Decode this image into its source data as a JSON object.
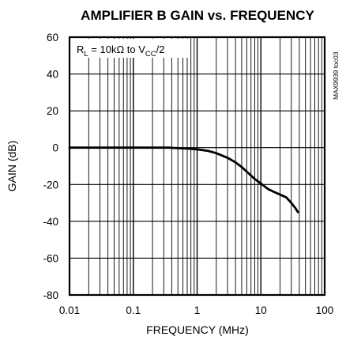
{
  "chart_data": {
    "type": "line",
    "title": "AMPLIFIER B GAIN vs. FREQUENCY",
    "xlabel": "FREQUENCY (MHz)",
    "ylabel": "GAIN (dB)",
    "xscale": "log",
    "xlim": [
      0.01,
      100
    ],
    "ylim": [
      -80,
      60
    ],
    "xticks": [
      "0.01",
      "0.1",
      "1",
      "10",
      "100"
    ],
    "yticks": [
      "60",
      "40",
      "20",
      "0",
      "-20",
      "-40",
      "-60",
      "-80"
    ],
    "grid": true,
    "annotation": {
      "R": "R",
      "R_sub": "L",
      "mid": " = 10kΩ to V",
      "V_sub": "CC",
      "tail": "/2"
    },
    "doc_code": "MAX9939 toc03",
    "series": [
      {
        "x": [
          0.01,
          0.02,
          0.05,
          0.1,
          0.2,
          0.35,
          0.5,
          0.7,
          1,
          1.5,
          2,
          3,
          4,
          5,
          6,
          8,
          10,
          13,
          16,
          20,
          25,
          30,
          35,
          38
        ],
        "y": [
          0,
          0,
          0,
          0,
          0,
          0,
          -0.3,
          -0.5,
          -0.9,
          -1.8,
          -3,
          -5.5,
          -8,
          -10.5,
          -13,
          -17,
          -19.5,
          -22.5,
          -24,
          -25.5,
          -27,
          -30,
          -33,
          -35
        ]
      }
    ]
  }
}
